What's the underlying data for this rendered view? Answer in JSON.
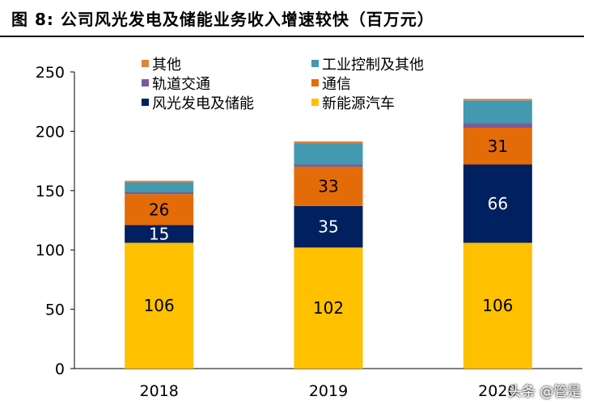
{
  "title": "图 8:  公司风光发电及储能业务收入增速较快（百万元）",
  "watermark": "头条 @管是",
  "chart_data": {
    "type": "bar",
    "stacked": true,
    "categories": [
      "2018",
      "2019",
      "2020"
    ],
    "ylim": [
      0,
      250
    ],
    "yticks": [
      0,
      50,
      100,
      150,
      200,
      250
    ],
    "legend_position": "top-left",
    "series": [
      {
        "name": "新能源汽车",
        "color": "#FFC000",
        "values": [
          106,
          102,
          106
        ],
        "labeled": true
      },
      {
        "name": "风光发电及储能",
        "color": "#002060",
        "values": [
          15,
          35,
          66
        ],
        "labeled": true
      },
      {
        "name": "通信",
        "color": "#E36C09",
        "values": [
          26,
          33,
          31
        ],
        "labeled": true
      },
      {
        "name": "轨道交通",
        "color": "#7B5C94",
        "values": [
          1.5,
          2,
          4
        ],
        "labeled": false
      },
      {
        "name": "工业控制及其他",
        "color": "#4299B0",
        "values": [
          8.5,
          18,
          19
        ],
        "labeled": false
      },
      {
        "name": "其他",
        "color": "#E0843C",
        "values": [
          1.3,
          1.5,
          1.3
        ],
        "labeled": false
      }
    ]
  }
}
